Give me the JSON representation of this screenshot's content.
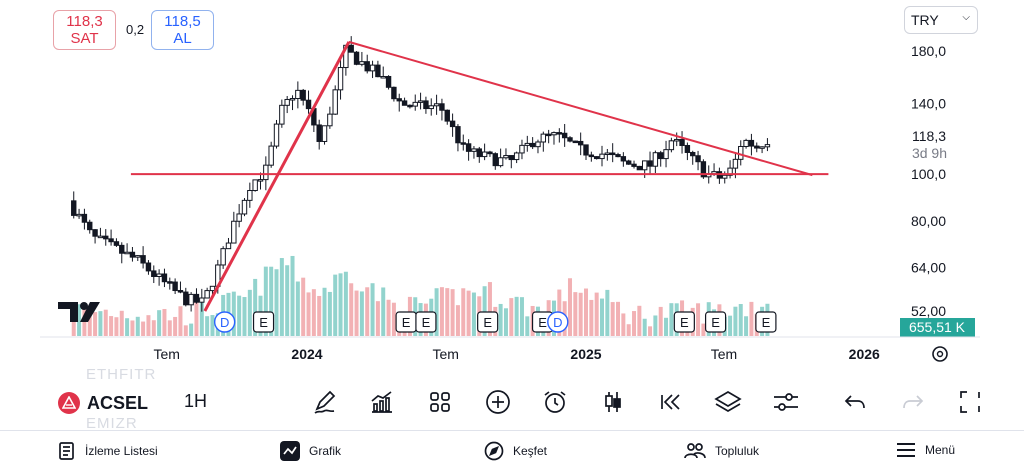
{
  "header": {
    "sell_price": "118,3",
    "sell_label": "SAT",
    "spread": "0,2",
    "buy_price": "118,5",
    "buy_label": "AL",
    "currency": "TRY"
  },
  "chart_data": {
    "type": "candlestick",
    "title": "",
    "price_axis_labels": [
      "180,0",
      "140,0",
      "118,3",
      "100,0",
      "80,00",
      "64,00",
      "52,00"
    ],
    "price_axis_ticks": [
      180,
      140,
      100,
      80,
      64,
      52
    ],
    "price_axis_scale": "log",
    "last_price": "118,3",
    "countdown": "3d 9h",
    "volume_label": "655,51 K",
    "time_axis_labels": [
      "Tem",
      "2024",
      "Tem",
      "2025",
      "Tem",
      "2026"
    ],
    "time_axis_dates": [
      "2023-07",
      "2024-01",
      "2024-07",
      "2025-01",
      "2025-07",
      "2026-01"
    ],
    "event_markers": [
      {
        "type": "D",
        "date": "2023-09-15"
      },
      {
        "type": "E",
        "date": "2023-11-05"
      },
      {
        "type": "E",
        "date": "2024-05-10"
      },
      {
        "type": "E",
        "date": "2024-06-05"
      },
      {
        "type": "E",
        "date": "2024-08-25"
      },
      {
        "type": "E",
        "date": "2024-11-05"
      },
      {
        "type": "D",
        "date": "2024-11-25"
      },
      {
        "type": "E",
        "date": "2025-05-10"
      },
      {
        "type": "E",
        "date": "2025-06-20"
      },
      {
        "type": "E",
        "date": "2025-08-25"
      }
    ],
    "drawings": [
      {
        "type": "trendline",
        "from": {
          "date": "2023-08-20",
          "price": 52
        },
        "to": {
          "date": "2024-02-25",
          "price": 188
        }
      },
      {
        "type": "trendline",
        "from": {
          "date": "2024-02-25",
          "price": 188
        },
        "to": {
          "date": "2025-10-25",
          "price": 99.5
        }
      },
      {
        "type": "horizontal",
        "price": 100,
        "from": "2023-05-15",
        "to": "2025-11-15"
      }
    ],
    "price_path": [
      {
        "date": "2023-03-01",
        "price": 88
      },
      {
        "date": "2023-04-01",
        "price": 74
      },
      {
        "date": "2023-05-01",
        "price": 70
      },
      {
        "date": "2023-06-01",
        "price": 66
      },
      {
        "date": "2023-07-01",
        "price": 60
      },
      {
        "date": "2023-08-01",
        "price": 55
      },
      {
        "date": "2023-08-25",
        "price": 54
      },
      {
        "date": "2023-09-15",
        "price": 65
      },
      {
        "date": "2023-10-05",
        "price": 80
      },
      {
        "date": "2023-10-25",
        "price": 95
      },
      {
        "date": "2023-11-15",
        "price": 102
      },
      {
        "date": "2023-12-05",
        "price": 135
      },
      {
        "date": "2023-12-25",
        "price": 150
      },
      {
        "date": "2024-01-15",
        "price": 130
      },
      {
        "date": "2024-01-25",
        "price": 115
      },
      {
        "date": "2024-02-15",
        "price": 150
      },
      {
        "date": "2024-02-28",
        "price": 180
      },
      {
        "date": "2024-03-20",
        "price": 170
      },
      {
        "date": "2024-04-15",
        "price": 158
      },
      {
        "date": "2024-05-10",
        "price": 140
      },
      {
        "date": "2024-06-05",
        "price": 138
      },
      {
        "date": "2024-07-01",
        "price": 138
      },
      {
        "date": "2024-08-01",
        "price": 112
      },
      {
        "date": "2024-09-01",
        "price": 108
      },
      {
        "date": "2024-10-01",
        "price": 106
      },
      {
        "date": "2024-11-01",
        "price": 118
      },
      {
        "date": "2024-12-01",
        "price": 120
      },
      {
        "date": "2025-01-01",
        "price": 112
      },
      {
        "date": "2025-02-01",
        "price": 110
      },
      {
        "date": "2025-03-01",
        "price": 105
      },
      {
        "date": "2025-04-01",
        "price": 104
      },
      {
        "date": "2025-05-01",
        "price": 118
      },
      {
        "date": "2025-05-25",
        "price": 108
      },
      {
        "date": "2025-06-15",
        "price": 100
      },
      {
        "date": "2025-07-05",
        "price": 98
      },
      {
        "date": "2025-07-20",
        "price": 103
      },
      {
        "date": "2025-08-01",
        "price": 118
      },
      {
        "date": "2025-08-20",
        "price": 114
      },
      {
        "date": "2025-09-01",
        "price": 118
      }
    ],
    "volume_profile": [
      {
        "date": "2023-03-01",
        "v": 0.3
      },
      {
        "date": "2023-08-01",
        "v": 0.25
      },
      {
        "date": "2023-10-15",
        "v": 0.45
      },
      {
        "date": "2023-12-01",
        "v": 0.9
      },
      {
        "date": "2024-01-15",
        "v": 0.5
      },
      {
        "date": "2024-02-25",
        "v": 0.75
      },
      {
        "date": "2024-05-01",
        "v": 0.3
      },
      {
        "date": "2024-08-15",
        "v": 0.55
      },
      {
        "date": "2024-11-01",
        "v": 0.3
      },
      {
        "date": "2024-12-20",
        "v": 0.6
      },
      {
        "date": "2025-03-01",
        "v": 0.25
      },
      {
        "date": "2025-07-01",
        "v": 0.3
      },
      {
        "date": "2025-09-01",
        "v": 0.4
      }
    ]
  },
  "toolbar": {
    "ticker_ghost_above": "ETHFITR",
    "symbol": "ACSEL",
    "ticker_ghost_below": "EMIZR",
    "interval": "1H",
    "tools": [
      {
        "icon": "pencil-icon"
      },
      {
        "icon": "indicators-icon"
      },
      {
        "icon": "grid-icon"
      },
      {
        "icon": "plus-circle-icon"
      },
      {
        "icon": "alarm-icon"
      },
      {
        "icon": "candles-icon"
      },
      {
        "icon": "replay-icon"
      },
      {
        "icon": "layers-icon"
      },
      {
        "icon": "settings-sliders-icon"
      },
      {
        "icon": "undo-icon"
      },
      {
        "icon": "redo-icon"
      },
      {
        "icon": "fullscreen-icon"
      }
    ]
  },
  "bottom_nav": {
    "items": [
      {
        "label": "İzleme Listesi",
        "icon": "watchlist-icon"
      },
      {
        "label": "Grafik",
        "icon": "chart-icon"
      },
      {
        "label": "Keşfet",
        "icon": "compass-icon"
      },
      {
        "label": "Topluluk",
        "icon": "community-icon"
      },
      {
        "label": "Menü",
        "icon": "menu-icon"
      }
    ]
  },
  "colors": {
    "up": "#ffffff",
    "down": "#131722",
    "line": "#e0334a",
    "volume_up": "#7fcbc4",
    "volume_down": "#f0a3a7",
    "price_tag": "#26a69a"
  }
}
